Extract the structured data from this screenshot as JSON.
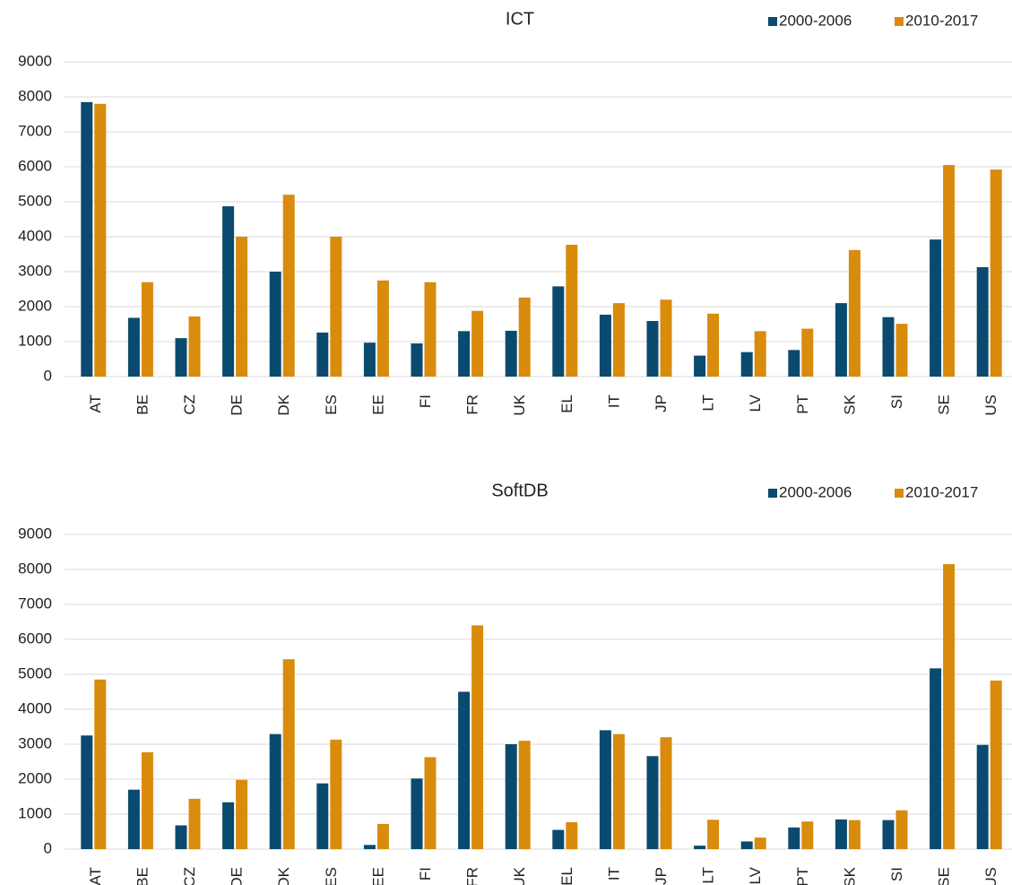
{
  "chart_data": [
    {
      "type": "bar",
      "title": "ICT",
      "categories": [
        "AT",
        "BE",
        "CZ",
        "DE",
        "DK",
        "ES",
        "EE",
        "FI",
        "FR",
        "UK",
        "EL",
        "IT",
        "JP",
        "LT",
        "LV",
        "PT",
        "SK",
        "SI",
        "SE",
        "US"
      ],
      "series": [
        {
          "name": "2000-2006",
          "color": "#0b4a6f",
          "values": [
            7850,
            1680,
            1100,
            4870,
            3000,
            1260,
            970,
            950,
            1300,
            1310,
            2580,
            1770,
            1590,
            600,
            700,
            760,
            2100,
            1700,
            3920,
            3130
          ]
        },
        {
          "name": "2010-2017",
          "color": "#d98b0c",
          "values": [
            7800,
            2700,
            1720,
            4000,
            5200,
            4000,
            2750,
            2700,
            1880,
            2260,
            3770,
            2100,
            2200,
            1800,
            1300,
            1370,
            3620,
            1510,
            6050,
            5920
          ]
        }
      ],
      "ylim": [
        0,
        9000
      ],
      "yticks": [
        0,
        1000,
        2000,
        3000,
        4000,
        5000,
        6000,
        7000,
        8000,
        9000
      ],
      "grid": true,
      "legend": "top-right"
    },
    {
      "type": "bar",
      "title": "SoftDB",
      "categories": [
        "AT",
        "BE",
        "CZ",
        "DE",
        "DK",
        "ES",
        "EE",
        "FI",
        "FR",
        "UK",
        "EL",
        "IT",
        "JP",
        "LT",
        "LV",
        "PT",
        "SK",
        "SI",
        "SE",
        "US"
      ],
      "series": [
        {
          "name": "2000-2006",
          "color": "#0b4a6f",
          "values": [
            3250,
            1700,
            680,
            1340,
            3290,
            1880,
            120,
            2020,
            4500,
            3000,
            550,
            3400,
            2660,
            100,
            220,
            620,
            850,
            830,
            5170,
            2980
          ]
        },
        {
          "name": "2010-2017",
          "color": "#d98b0c",
          "values": [
            4850,
            2770,
            1440,
            1980,
            5430,
            3130,
            720,
            2630,
            6400,
            3100,
            770,
            3290,
            3200,
            840,
            330,
            790,
            830,
            1110,
            8150,
            4820
          ]
        }
      ],
      "ylim": [
        0,
        9000
      ],
      "yticks": [
        0,
        1000,
        2000,
        3000,
        4000,
        5000,
        6000,
        7000,
        8000,
        9000
      ],
      "grid": true,
      "legend": "top-right"
    }
  ]
}
